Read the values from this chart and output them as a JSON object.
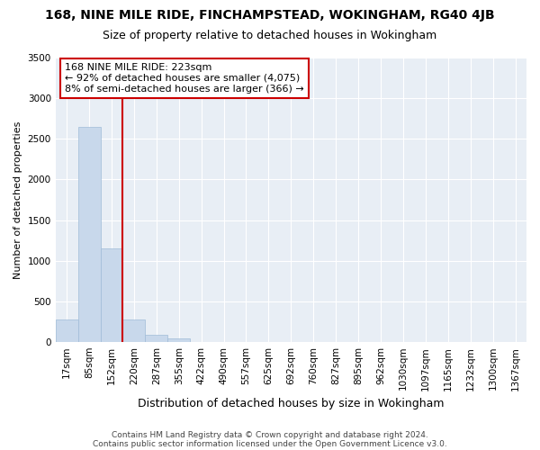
{
  "title1": "168, NINE MILE RIDE, FINCHAMPSTEAD, WOKINGHAM, RG40 4JB",
  "title2": "Size of property relative to detached houses in Wokingham",
  "xlabel": "Distribution of detached houses by size in Wokingham",
  "ylabel": "Number of detached properties",
  "footer1": "Contains HM Land Registry data © Crown copyright and database right 2024.",
  "footer2": "Contains public sector information licensed under the Open Government Licence v3.0.",
  "annotation_line1": "168 NINE MILE RIDE: 223sqm",
  "annotation_line2": "← 92% of detached houses are smaller (4,075)",
  "annotation_line3": "8% of semi-detached houses are larger (366) →",
  "bar_color": "#c8d8eb",
  "bar_edge_color": "#a0bcd8",
  "marker_color": "#cc0000",
  "annotation_box_edgecolor": "#cc0000",
  "background_color": "#e8eef5",
  "categories": [
    "17sqm",
    "85sqm",
    "152sqm",
    "220sqm",
    "287sqm",
    "355sqm",
    "422sqm",
    "490sqm",
    "557sqm",
    "625sqm",
    "692sqm",
    "760sqm",
    "827sqm",
    "895sqm",
    "962sqm",
    "1030sqm",
    "1097sqm",
    "1165sqm",
    "1232sqm",
    "1300sqm",
    "1367sqm"
  ],
  "values": [
    280,
    2650,
    1150,
    280,
    85,
    50,
    0,
    0,
    0,
    0,
    0,
    0,
    0,
    0,
    0,
    0,
    0,
    0,
    0,
    0,
    0
  ],
  "ylim": [
    0,
    3500
  ],
  "yticks": [
    0,
    500,
    1000,
    1500,
    2000,
    2500,
    3000,
    3500
  ],
  "vline_x": 2.5,
  "title1_fontsize": 10,
  "title2_fontsize": 9,
  "ylabel_fontsize": 8,
  "xlabel_fontsize": 9,
  "tick_fontsize": 7.5,
  "footer_fontsize": 6.5,
  "annotation_fontsize": 8
}
